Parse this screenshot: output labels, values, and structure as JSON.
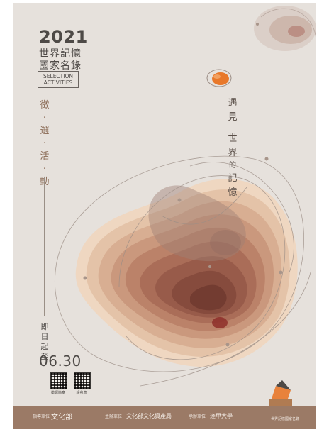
{
  "poster": {
    "year": "2021",
    "title_line1": "世界記憶",
    "title_line2": "國家名錄",
    "badge_line1": "SELECTION",
    "badge_line2": "ACTIVITIES",
    "vertical_left": [
      "徵",
      "·",
      "選",
      "·",
      "活",
      "·",
      "動"
    ],
    "vertical_start": [
      "即",
      "日",
      "起",
      "至"
    ],
    "end_date": "06.30",
    "qr_labels": [
      "徵選簡章",
      "報名表"
    ],
    "vertical_right_1": [
      "遇",
      "見"
    ],
    "vertical_right_2": [
      "世",
      "界",
      "的",
      "記",
      "憶"
    ]
  },
  "footer": {
    "org1_role": "指導單位",
    "org1_name": "文化部",
    "org2_role": "主辦單位",
    "org2_name": "文化部文化資產局",
    "org3_role": "承辦單位",
    "org3_name": "逢甲大學",
    "org4_name": "世界記憶國家名錄"
  },
  "colors": {
    "background": "#e6e1dc",
    "footer": "#9b7a66",
    "accent": "#e8782a"
  }
}
